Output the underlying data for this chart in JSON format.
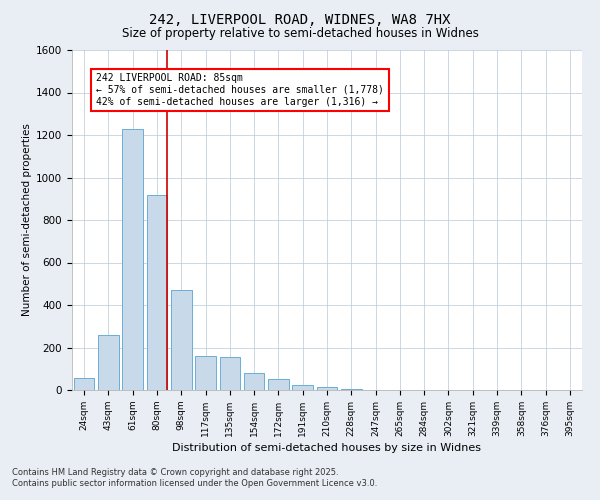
{
  "title1": "242, LIVERPOOL ROAD, WIDNES, WA8 7HX",
  "title2": "Size of property relative to semi-detached houses in Widnes",
  "xlabel": "Distribution of semi-detached houses by size in Widnes",
  "ylabel": "Number of semi-detached properties",
  "categories": [
    "24sqm",
    "43sqm",
    "61sqm",
    "80sqm",
    "98sqm",
    "117sqm",
    "135sqm",
    "154sqm",
    "172sqm",
    "191sqm",
    "210sqm",
    "228sqm",
    "247sqm",
    "265sqm",
    "284sqm",
    "302sqm",
    "321sqm",
    "339sqm",
    "358sqm",
    "376sqm",
    "395sqm"
  ],
  "values": [
    55,
    260,
    1230,
    920,
    470,
    160,
    155,
    80,
    50,
    25,
    15,
    5,
    0,
    0,
    0,
    0,
    0,
    0,
    0,
    0,
    0
  ],
  "bar_color": "#c8d9ea",
  "bar_edge_color": "#6aaed6",
  "highlight_color": "#cc0000",
  "highlight_bar_index": 3,
  "property_size": "85sqm",
  "pct_smaller": 57,
  "n_smaller": 1778,
  "pct_larger": 42,
  "n_larger": 1316,
  "annotation_label": "242 LIVERPOOL ROAD: 85sqm",
  "ylim": [
    0,
    1600
  ],
  "yticks": [
    0,
    200,
    400,
    600,
    800,
    1000,
    1200,
    1400,
    1600
  ],
  "footnote1": "Contains HM Land Registry data © Crown copyright and database right 2025.",
  "footnote2": "Contains public sector information licensed under the Open Government Licence v3.0.",
  "bg_color": "#e8eef4",
  "plot_bg_color": "#ffffff",
  "grid_color": "#b8c8d8"
}
